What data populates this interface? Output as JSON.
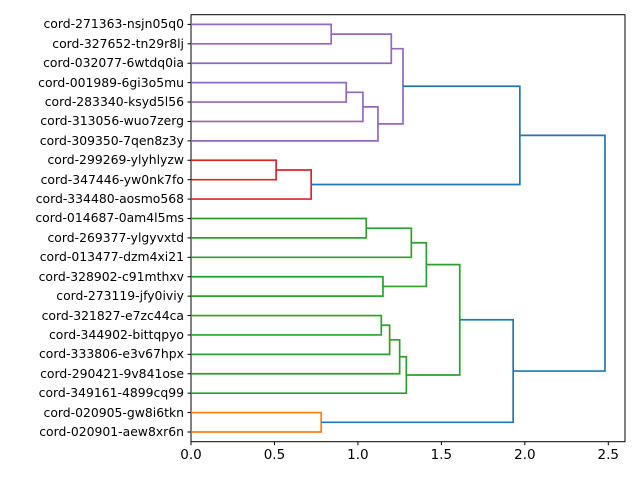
{
  "chart_data": {
    "type": "dendrogram",
    "orientation": "right",
    "title": "",
    "xlabel": "",
    "ylabel": "",
    "xlim": [
      0,
      2.6
    ],
    "xticks": [
      0.0,
      0.5,
      1.0,
      1.5,
      2.0,
      2.5
    ],
    "xtick_labels": [
      "0.0",
      "0.5",
      "1.0",
      "1.5",
      "2.0",
      "2.5"
    ],
    "grid": false,
    "leaves": [
      "cord-271363-nsjn05q0",
      "cord-327652-tn29r8lj",
      "cord-032077-6wtdq0ia",
      "cord-001989-6gi3o5mu",
      "cord-283340-ksyd5l56",
      "cord-313056-wuo7zerg",
      "cord-309350-7qen8z3y",
      "cord-299269-ylyhlyzw",
      "cord-347446-yw0nk7fo",
      "cord-334480-aosmo568",
      "cord-014687-0am4l5ms",
      "cord-269377-ylgyvxtd",
      "cord-013477-dzm4xi21",
      "cord-328902-c91mthxv",
      "cord-273119-jfy0iviy",
      "cord-321827-e7zc44ca",
      "cord-344902-bittqpyo",
      "cord-333806-e3v67hpx",
      "cord-290421-9v841ose",
      "cord-349161-4899cq99",
      "cord-020905-gw8i6tkn",
      "cord-020901-aew8xr6n"
    ],
    "merges": [
      {
        "id": "P1",
        "a": "L1",
        "b": "L2",
        "height": 0.84,
        "color": "purple"
      },
      {
        "id": "P2",
        "a": "P1",
        "b": "L3",
        "height": 1.2,
        "color": "purple"
      },
      {
        "id": "P3",
        "a": "L4",
        "b": "L5",
        "height": 0.93,
        "color": "purple"
      },
      {
        "id": "P4",
        "a": "P3",
        "b": "L6",
        "height": 1.03,
        "color": "purple"
      },
      {
        "id": "P5",
        "a": "P4",
        "b": "L7",
        "height": 1.12,
        "color": "purple"
      },
      {
        "id": "P6",
        "a": "P2",
        "b": "P5",
        "height": 1.27,
        "color": "purple"
      },
      {
        "id": "R1",
        "a": "L8",
        "b": "L9",
        "height": 0.51,
        "color": "red"
      },
      {
        "id": "R2",
        "a": "R1",
        "b": "L10",
        "height": 0.72,
        "color": "red"
      },
      {
        "id": "G1",
        "a": "L11",
        "b": "L12",
        "height": 1.05,
        "color": "green"
      },
      {
        "id": "G2",
        "a": "G1",
        "b": "L13",
        "height": 1.32,
        "color": "green"
      },
      {
        "id": "G3",
        "a": "L14",
        "b": "L15",
        "height": 1.15,
        "color": "green"
      },
      {
        "id": "G4",
        "a": "G2",
        "b": "G3",
        "height": 1.41,
        "color": "green"
      },
      {
        "id": "G5",
        "a": "L16",
        "b": "L17",
        "height": 1.14,
        "color": "green"
      },
      {
        "id": "G6",
        "a": "G5",
        "b": "L18",
        "height": 1.19,
        "color": "green"
      },
      {
        "id": "G7",
        "a": "G6",
        "b": "L19",
        "height": 1.25,
        "color": "green"
      },
      {
        "id": "G8",
        "a": "G7",
        "b": "L20",
        "height": 1.29,
        "color": "green"
      },
      {
        "id": "G9",
        "a": "G4",
        "b": "G8",
        "height": 1.61,
        "color": "green"
      },
      {
        "id": "O1",
        "a": "L21",
        "b": "L22",
        "height": 0.78,
        "color": "orange"
      },
      {
        "id": "B1",
        "a": "P6",
        "b": "R2",
        "height": 1.97,
        "color": "blue"
      },
      {
        "id": "B2",
        "a": "G9",
        "b": "O1",
        "height": 1.93,
        "color": "blue"
      },
      {
        "id": "B3",
        "a": "B1",
        "b": "B2",
        "height": 2.48,
        "color": "blue"
      }
    ],
    "colors": {
      "blue": "#1f77b4",
      "orange": "#ff7f0e",
      "green": "#2ca02c",
      "red": "#d62728",
      "purple": "#9467bd",
      "axis": "#000000",
      "background": "#ffffff"
    }
  }
}
